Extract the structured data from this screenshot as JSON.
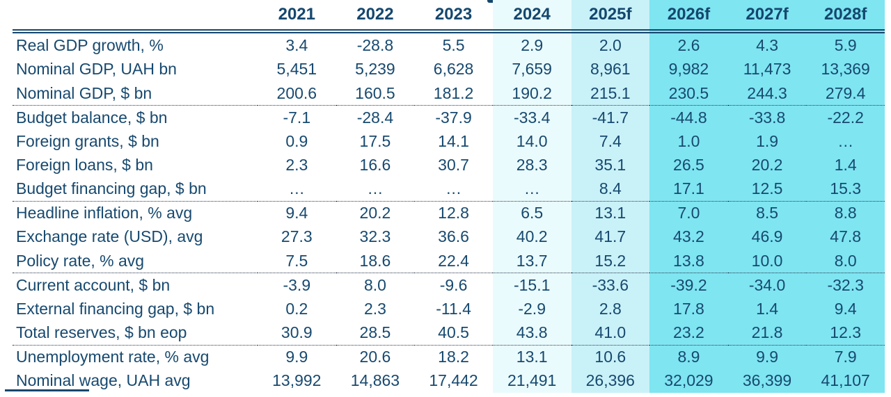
{
  "colors": {
    "text_navy": "#17496f",
    "header_navy": "#14476e",
    "column_2024_bg": "#eafbfd",
    "column_2025f_bg": "#c9f1f8",
    "forecast_columns_bg": "#7fe5f1"
  },
  "chart_data": {
    "type": "table",
    "title": "",
    "columns": [
      {
        "label": "2021",
        "shade": "none"
      },
      {
        "label": "2022",
        "shade": "none"
      },
      {
        "label": "2023",
        "shade": "none"
      },
      {
        "label": "2024",
        "shade": "light"
      },
      {
        "label": "2025f",
        "shade": "mid"
      },
      {
        "label": "2026f",
        "shade": "strong"
      },
      {
        "label": "2027f",
        "shade": "strong"
      },
      {
        "label": "2028f",
        "shade": "strong"
      }
    ],
    "rows": [
      {
        "label": "Real GDP growth, %",
        "values": [
          "3.4",
          "-28.8",
          "5.5",
          "2.9",
          "2.0",
          "2.6",
          "4.3",
          "5.9"
        ],
        "separator_below": false
      },
      {
        "label": "Nominal GDP, UAH bn",
        "values": [
          "5,451",
          "5,239",
          "6,628",
          "7,659",
          "8,961",
          "9,982",
          "11,473",
          "13,369"
        ],
        "separator_below": false
      },
      {
        "label": "Nominal GDP, $ bn",
        "values": [
          "200.6",
          "160.5",
          "181.2",
          "190.2",
          "215.1",
          "230.5",
          "244.3",
          "279.4"
        ],
        "separator_below": true
      },
      {
        "label": "Budget balance, $ bn",
        "values": [
          "-7.1",
          "-28.4",
          "-37.9",
          "-33.4",
          "-41.7",
          "-44.8",
          "-33.8",
          "-22.2"
        ],
        "separator_below": false
      },
      {
        "label": "Foreign grants, $ bn",
        "values": [
          "0.9",
          "17.5",
          "14.1",
          "14.0",
          "7.4",
          "1.0",
          "1.9",
          "…"
        ],
        "separator_below": false
      },
      {
        "label": "Foreign loans, $ bn",
        "values": [
          "2.3",
          "16.6",
          "30.7",
          "28.3",
          "35.1",
          "26.5",
          "20.2",
          "1.4"
        ],
        "separator_below": false
      },
      {
        "label": "Budget financing gap, $ bn",
        "values": [
          "…",
          "…",
          "…",
          "…",
          "8.4",
          "17.1",
          "12.5",
          "15.3"
        ],
        "separator_below": true
      },
      {
        "label": "Headline inflation, % avg",
        "values": [
          "9.4",
          "20.2",
          "12.8",
          "6.5",
          "13.1",
          "7.0",
          "8.5",
          "8.8"
        ],
        "separator_below": false
      },
      {
        "label": "Exchange rate (USD), avg",
        "values": [
          "27.3",
          "32.3",
          "36.6",
          "40.2",
          "41.7",
          "43.2",
          "46.9",
          "47.8"
        ],
        "separator_below": false
      },
      {
        "label": "Policy rate, % avg",
        "values": [
          "7.5",
          "18.6",
          "22.4",
          "13.7",
          "15.2",
          "13.8",
          "10.0",
          "8.0"
        ],
        "separator_below": true
      },
      {
        "label": "Current account, $ bn",
        "values": [
          "-3.9",
          "8.0",
          "-9.6",
          "-15.1",
          "-33.6",
          "-39.2",
          "-34.0",
          "-32.3"
        ],
        "separator_below": false
      },
      {
        "label": "External financing gap, $ bn",
        "values": [
          "0.2",
          "2.3",
          "-11.4",
          "-2.9",
          "2.8",
          "17.8",
          "1.4",
          "9.4"
        ],
        "separator_below": false
      },
      {
        "label": "Total reserves, $ bn eop",
        "values": [
          "30.9",
          "28.5",
          "40.5",
          "43.8",
          "41.0",
          "23.2",
          "21.8",
          "12.3"
        ],
        "separator_below": true
      },
      {
        "label": "Unemployment rate, % avg",
        "values": [
          "9.9",
          "20.6",
          "18.2",
          "13.1",
          "10.6",
          "8.9",
          "9.9",
          "7.9"
        ],
        "separator_below": false
      },
      {
        "label": "Nominal wage, UAH avg",
        "values": [
          "13,992",
          "14,863",
          "17,442",
          "21,491",
          "26,396",
          "32,029",
          "36,399",
          "41,107"
        ],
        "separator_below": false
      }
    ]
  }
}
